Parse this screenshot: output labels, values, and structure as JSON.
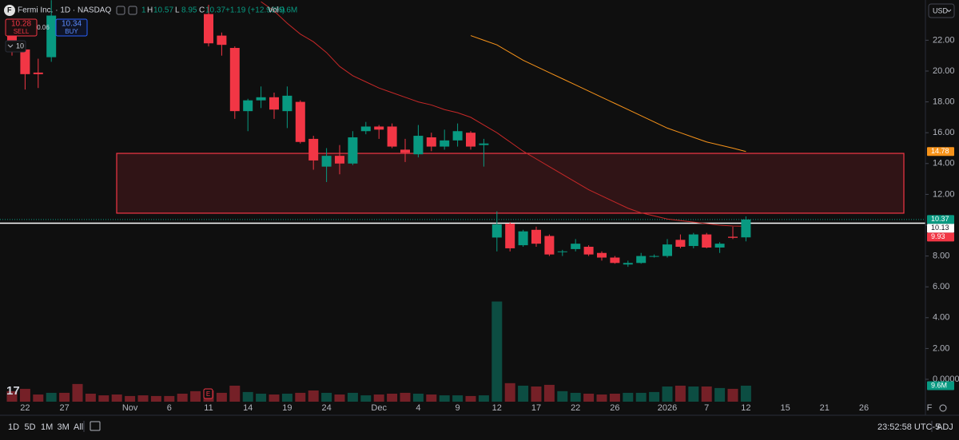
{
  "chart_data": {
    "type": "candlestick",
    "header": {
      "symbol": "Fermi Inc. · 1D · NASDAQ",
      "open_fragment": "1",
      "high_key": "H",
      "high": "10.57",
      "low_key": "L",
      "low": "8.95",
      "close_key": "C",
      "close": "10.37",
      "change": "+1.19 (+12.96%)",
      "vol_key": "Vol",
      "vol": "9.6M"
    },
    "trade": {
      "sell_price": "10.28",
      "sell": "SELL",
      "spread": "0.06",
      "buy_price": "10.34",
      "buy": "BUY",
      "quantity": "10"
    },
    "currency": "USD",
    "categories": [
      null,
      "22",
      null,
      null,
      "27",
      null,
      null,
      null,
      null,
      "Nov",
      null,
      null,
      "6",
      null,
      null,
      "11",
      null,
      null,
      "14",
      null,
      null,
      "19",
      null,
      null,
      "24",
      null,
      null,
      null,
      "Dec",
      null,
      null,
      "4",
      null,
      null,
      "9",
      null,
      null,
      "12",
      null,
      null,
      "17",
      null,
      null,
      "22",
      null,
      null,
      "26",
      null,
      null,
      null,
      "2026",
      null,
      null,
      "7",
      null,
      null,
      "12",
      null,
      null,
      "15",
      null,
      null,
      "21",
      null,
      null,
      "26",
      null,
      null,
      null,
      null,
      "F"
    ],
    "open": [
      22.5,
      21.4,
      19.9,
      20.9,
      null,
      null,
      null,
      null,
      null,
      null,
      null,
      null,
      null,
      null,
      null,
      23.7,
      22.3,
      21.5,
      17.4,
      18.1,
      18.3,
      17.4,
      18.0,
      15.6,
      13.8,
      14.5,
      14.0,
      16.1,
      16.4,
      16.4,
      14.9,
      14.6,
      15.7,
      15.1,
      15.5,
      16.0,
      15.2,
      9.2,
      10.1,
      8.7,
      9.7,
      9.3,
      8.3,
      8.45,
      8.6,
      8.2,
      7.9,
      7.45,
      7.55,
      8.0,
      8.0,
      9.05,
      8.65,
      9.4,
      8.55,
      9.25,
      9.21,
      null,
      null,
      null,
      null,
      null,
      null,
      null,
      null,
      null,
      null,
      null,
      null,
      null,
      null
    ],
    "high": [
      23.4,
      21.9,
      20.8,
      24.6,
      null,
      null,
      null,
      null,
      null,
      null,
      null,
      null,
      null,
      null,
      null,
      24.3,
      22.5,
      21.6,
      18.2,
      19.0,
      18.6,
      19.0,
      18.1,
      15.8,
      15.0,
      15.2,
      16.1,
      16.7,
      16.5,
      16.6,
      15.6,
      16.5,
      16.0,
      16.2,
      16.6,
      16.1,
      15.6,
      10.9,
      10.2,
      9.7,
      9.9,
      9.4,
      8.4,
      9.1,
      8.7,
      8.3,
      8.0,
      7.7,
      8.2,
      8.1,
      9.1,
      9.4,
      9.5,
      9.5,
      8.9,
      9.9,
      10.57,
      null,
      null,
      null,
      null,
      null,
      null,
      null,
      null,
      null,
      null,
      null,
      null,
      null,
      null
    ],
    "low": [
      21.0,
      18.8,
      18.9,
      20.6,
      null,
      null,
      null,
      null,
      null,
      null,
      null,
      null,
      null,
      null,
      null,
      21.6,
      21.0,
      16.9,
      16.1,
      17.6,
      16.9,
      16.3,
      15.3,
      13.6,
      12.8,
      13.3,
      13.9,
      15.9,
      15.6,
      15.0,
      14.1,
      14.4,
      14.8,
      14.9,
      15.1,
      14.9,
      13.8,
      8.3,
      8.3,
      8.6,
      8.6,
      8.0,
      8.0,
      8.3,
      8.0,
      7.7,
      7.5,
      7.3,
      7.5,
      7.9,
      7.9,
      8.5,
      8.5,
      8.5,
      8.2,
      9.1,
      8.95,
      null,
      null,
      null,
      null,
      null,
      null,
      null,
      null,
      null,
      null,
      null,
      null,
      null,
      null
    ],
    "close": [
      21.4,
      19.8,
      19.8,
      23.6,
      null,
      null,
      null,
      null,
      null,
      null,
      null,
      null,
      null,
      null,
      null,
      21.8,
      21.7,
      17.4,
      18.1,
      18.3,
      17.5,
      18.4,
      15.4,
      14.2,
      14.5,
      14.0,
      15.7,
      16.4,
      16.2,
      15.1,
      14.7,
      15.8,
      15.1,
      15.5,
      16.1,
      15.1,
      15.3,
      10.05,
      8.5,
      9.6,
      8.8,
      8.1,
      8.3,
      8.8,
      8.1,
      7.9,
      7.55,
      7.55,
      8.0,
      8.0,
      8.75,
      8.6,
      9.4,
      8.55,
      8.8,
      9.18,
      10.37,
      null,
      null,
      null,
      null,
      null,
      null,
      null,
      null,
      null,
      null,
      null,
      null,
      null,
      null
    ],
    "up_color": "#089981",
    "down_color": "#f23645",
    "volume": [
      6.3,
      7.7,
      4.3,
      5.3,
      5.3,
      10.6,
      4.8,
      3.8,
      4.3,
      3.4,
      3.8,
      3.4,
      3.4,
      4.8,
      6.3,
      6.7,
      5.3,
      9.6,
      5.8,
      4.8,
      4.3,
      4.8,
      5.3,
      6.7,
      5.3,
      4.3,
      5.3,
      3.8,
      4.3,
      4.8,
      5.3,
      4.8,
      4.3,
      3.8,
      3.8,
      3.4,
      3.8,
      60.1,
      11.1,
      9.6,
      9.1,
      10.1,
      6.3,
      5.3,
      4.8,
      4.3,
      4.8,
      5.3,
      5.3,
      5.8,
      9.1,
      9.6,
      9.1,
      9.1,
      8.2,
      7.7,
      9.6,
      null,
      null,
      null,
      null,
      null,
      null,
      null,
      null,
      null,
      null,
      null,
      null,
      null,
      null
    ],
    "series": [
      {
        "color": "#c62828",
        "values": [
          null,
          null,
          null,
          null,
          null,
          null,
          null,
          null,
          null,
          null,
          null,
          null,
          null,
          null,
          null,
          null,
          null,
          null,
          null,
          24.5,
          23.9,
          23.1,
          22.4,
          21.9,
          21.2,
          20.3,
          19.7,
          19.3,
          18.9,
          18.6,
          18.3,
          18.0,
          17.8,
          17.5,
          17.3,
          17.0,
          16.5,
          16.0,
          15.4,
          14.8,
          14.3,
          13.8,
          13.3,
          12.8,
          12.3,
          11.9,
          11.5,
          11.1,
          10.8,
          10.6,
          10.4,
          10.3,
          10.2,
          10.1,
          10.0,
          9.95,
          9.93,
          null,
          null,
          null,
          null,
          null,
          null,
          null,
          null,
          null,
          null,
          null,
          null,
          null,
          null
        ]
      },
      {
        "color": "#f7931a",
        "values": [
          null,
          null,
          null,
          null,
          null,
          null,
          null,
          null,
          null,
          null,
          null,
          null,
          null,
          null,
          null,
          null,
          null,
          null,
          null,
          null,
          null,
          null,
          null,
          null,
          null,
          null,
          null,
          null,
          null,
          null,
          null,
          null,
          null,
          null,
          null,
          22.3,
          22.0,
          21.7,
          21.2,
          20.7,
          20.3,
          19.9,
          19.5,
          19.1,
          18.7,
          18.3,
          17.9,
          17.5,
          17.1,
          16.7,
          16.3,
          16.0,
          15.7,
          15.4,
          15.2,
          15.0,
          14.78,
          null,
          null,
          null,
          null,
          null,
          null,
          null,
          null,
          null,
          null,
          null,
          null,
          null,
          null
        ]
      }
    ],
    "zone": {
      "high": 14.66,
      "low": 10.78
    },
    "price_labels": [
      {
        "value": 14.78,
        "label": "14.78",
        "color": "#f7931a",
        "line": "none"
      },
      {
        "value": 10.37,
        "label": "10.37",
        "color": "#089981",
        "line": "dotted"
      },
      {
        "value": 10.13,
        "label": "10.13",
        "color": "#ffffff",
        "line": "solid"
      },
      {
        "value": 9.93,
        "label": "9.93",
        "color": "#f23645",
        "line": "none"
      }
    ],
    "volume_tag": {
      "value": 9.6,
      "label": "9.6M"
    },
    "ylim": [
      -1.45,
      24.61
    ],
    "yticks": [
      {
        "value": 22,
        "label": "22.00"
      },
      {
        "value": 20,
        "label": "20.00"
      },
      {
        "value": 18,
        "label": "18.00"
      },
      {
        "value": 16,
        "label": "16.00"
      },
      {
        "value": 14,
        "label": "14.00"
      },
      {
        "value": 12,
        "label": "12.00"
      },
      {
        "value": 10,
        "label": "10.00"
      },
      {
        "value": 8,
        "label": "8.00"
      },
      {
        "value": 6,
        "label": "6.00"
      },
      {
        "value": 4,
        "label": "4.00"
      },
      {
        "value": 2,
        "label": "2.00"
      }
    ],
    "y2lim": [
      0,
      241
    ],
    "y2ticks": [
      {
        "value": 0,
        "label": "0.0000"
      }
    ],
    "earnings_marker": "E",
    "toolbar": {
      "ranges": [
        "1D",
        "5D",
        "1M",
        "3M",
        "All"
      ],
      "clock": "23:52:58 UTC-5",
      "adj": "ADJ"
    }
  }
}
